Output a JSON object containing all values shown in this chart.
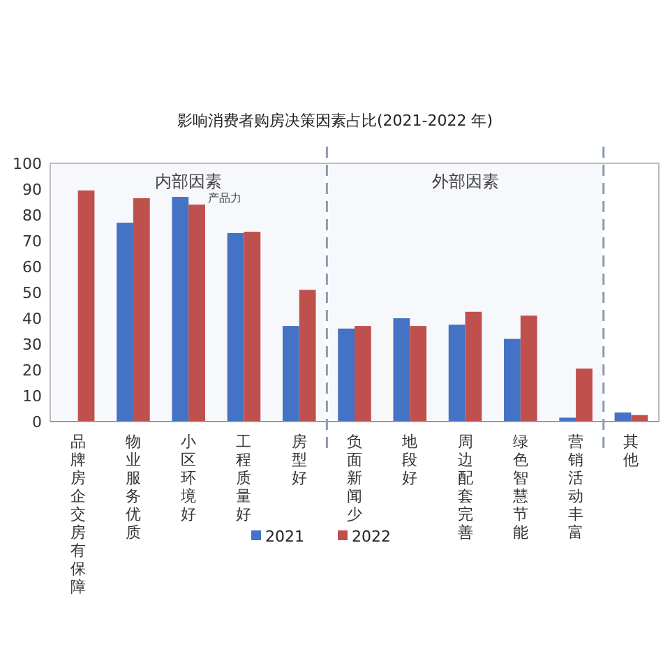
{
  "chart_data": {
    "type": "bar",
    "title": "影响消费者购房决策因素占比(2021-2022 年)",
    "categories": [
      "品牌房企交房有保障",
      "物业服务优质",
      "小区环境好",
      "工程质量好",
      "房型好",
      "负面新闻少",
      "地段好",
      "周边配套完善",
      "绿色智慧节能",
      "营销活动丰富",
      "其他"
    ],
    "series": [
      {
        "name": "2021",
        "color": "#4472c4",
        "values": [
          null,
          77,
          87,
          73,
          37,
          36,
          40,
          37.5,
          32,
          1.5,
          3.5
        ]
      },
      {
        "name": "2022",
        "color": "#c0504d",
        "values": [
          89.5,
          86.5,
          84,
          73.5,
          51,
          37,
          37,
          42.5,
          41,
          20.5,
          2.5
        ]
      }
    ],
    "ylim": [
      0,
      100
    ],
    "yticks": [
      0,
      10,
      20,
      30,
      40,
      50,
      60,
      70,
      80,
      90,
      100
    ],
    "bands": [
      {
        "axis": "x",
        "from": "品牌房企交房有保障",
        "to": "房型好",
        "label": "内部因素",
        "color": "#f6f8fb"
      },
      {
        "axis": "x",
        "from": "负面新闻少",
        "to": "营销活动丰富",
        "label": "外部因素",
        "color": "#f6f8fb"
      }
    ],
    "annotations": [
      {
        "text": "产品力",
        "x": "小区环境好",
        "y": 84
      }
    ],
    "legend": "bottom",
    "grid": false
  }
}
